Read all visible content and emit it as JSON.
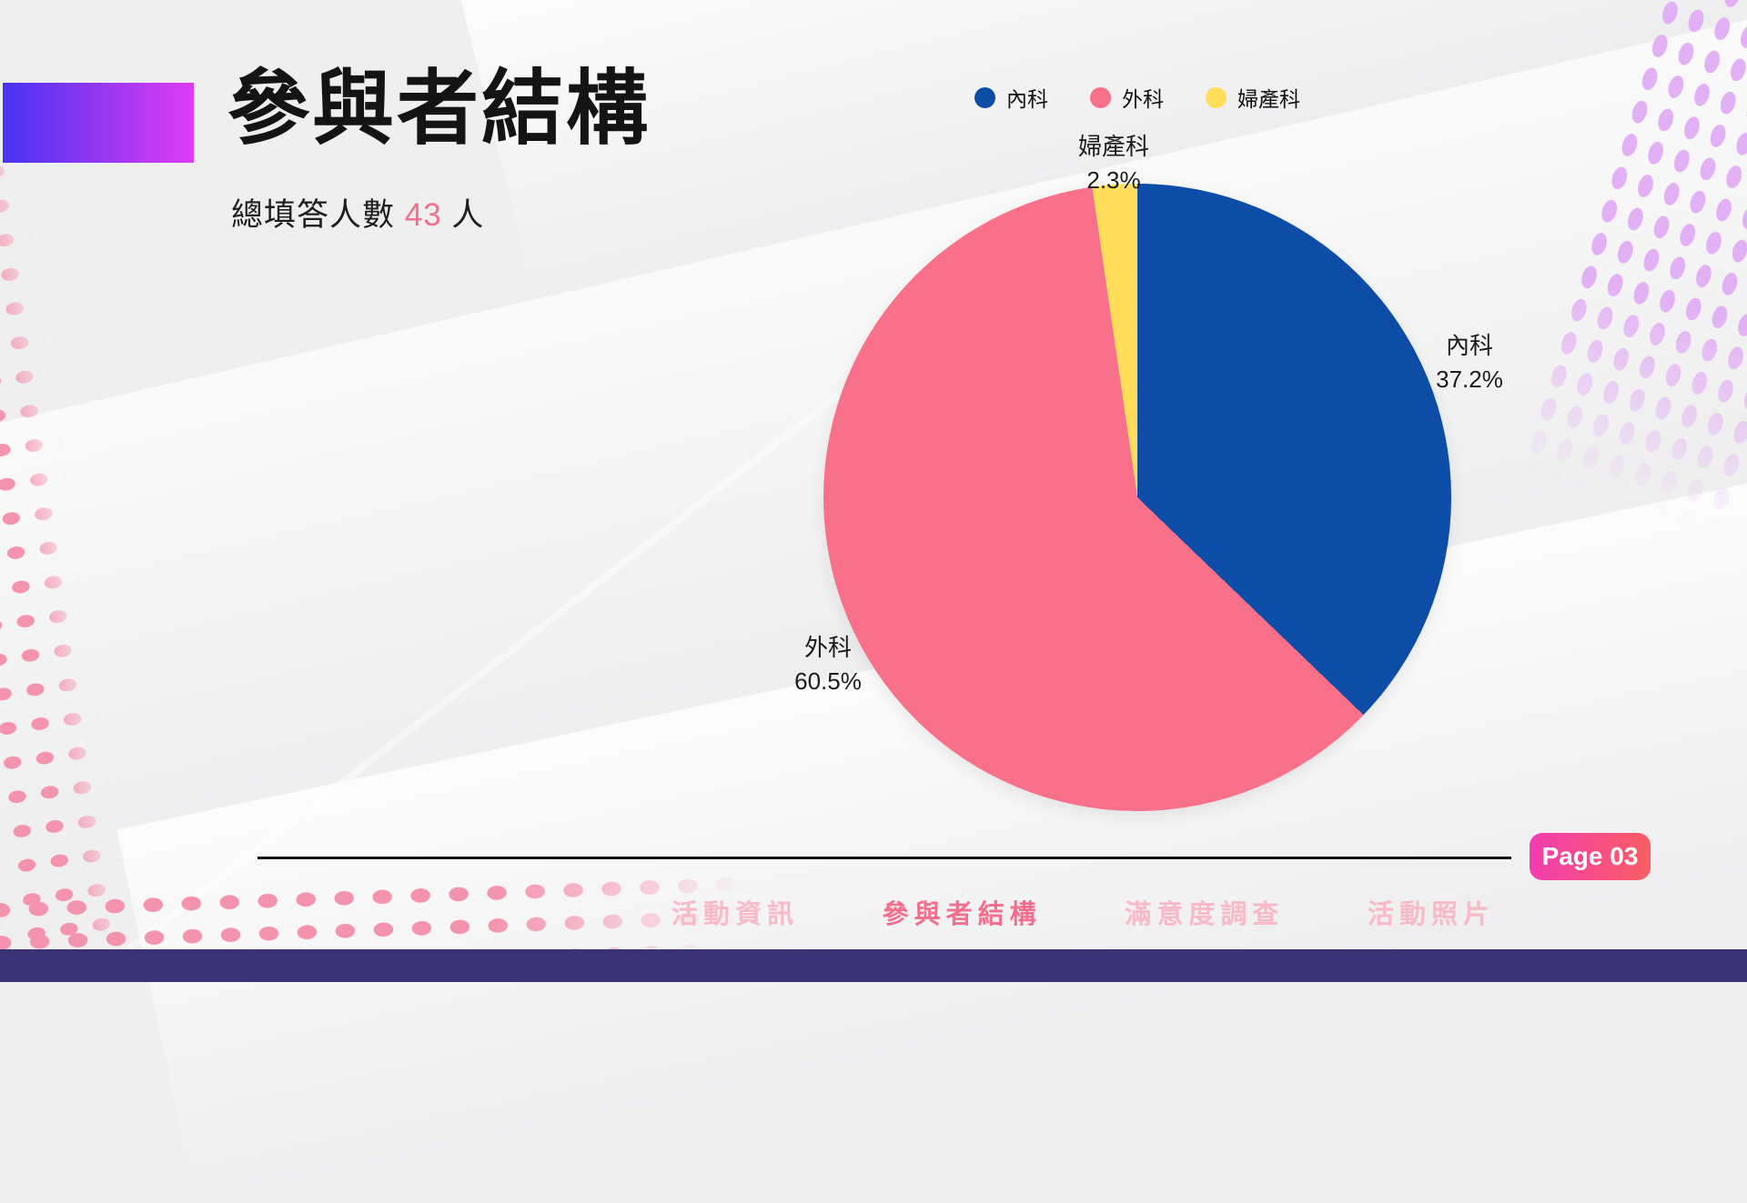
{
  "slide": {
    "title": "參與者結構",
    "subtitle": {
      "prefix": "總填答人數 ",
      "value": "43",
      "suffix": " 人"
    },
    "page_badge": "Page 03"
  },
  "chart_data": {
    "type": "pie",
    "title": "參與者結構",
    "categories": [
      "內科",
      "外科",
      "婦產科"
    ],
    "values": [
      37.2,
      60.5,
      2.3
    ],
    "unit": "%",
    "pct_labels": [
      "37.2%",
      "60.5%",
      "2.3%"
    ],
    "colors": [
      "#0d4da8",
      "#f87089",
      "#ffde59"
    ],
    "legend_position": "top",
    "start_angle_deg": 0,
    "direction": "clockwise",
    "total_respondents": 43
  },
  "nav": {
    "items": [
      {
        "label": "活動資訊",
        "active": false
      },
      {
        "label": "參與者結構",
        "active": true
      },
      {
        "label": "滿意度調查",
        "active": false
      },
      {
        "label": "活動照片",
        "active": false
      }
    ]
  },
  "theme": {
    "accent_pink": "#f2708e",
    "inactive_nav_pink": "#f8b9c8",
    "footer_purple": "#3b3274",
    "badge_gradient_start": "#f13cb0",
    "badge_gradient_end": "#fb5e62",
    "header_gradient_start": "#4833f2",
    "header_gradient_end": "#df3cf2",
    "dot_pattern_pink": "#f493ae",
    "dot_pattern_lavender": "#e2b0f4"
  }
}
